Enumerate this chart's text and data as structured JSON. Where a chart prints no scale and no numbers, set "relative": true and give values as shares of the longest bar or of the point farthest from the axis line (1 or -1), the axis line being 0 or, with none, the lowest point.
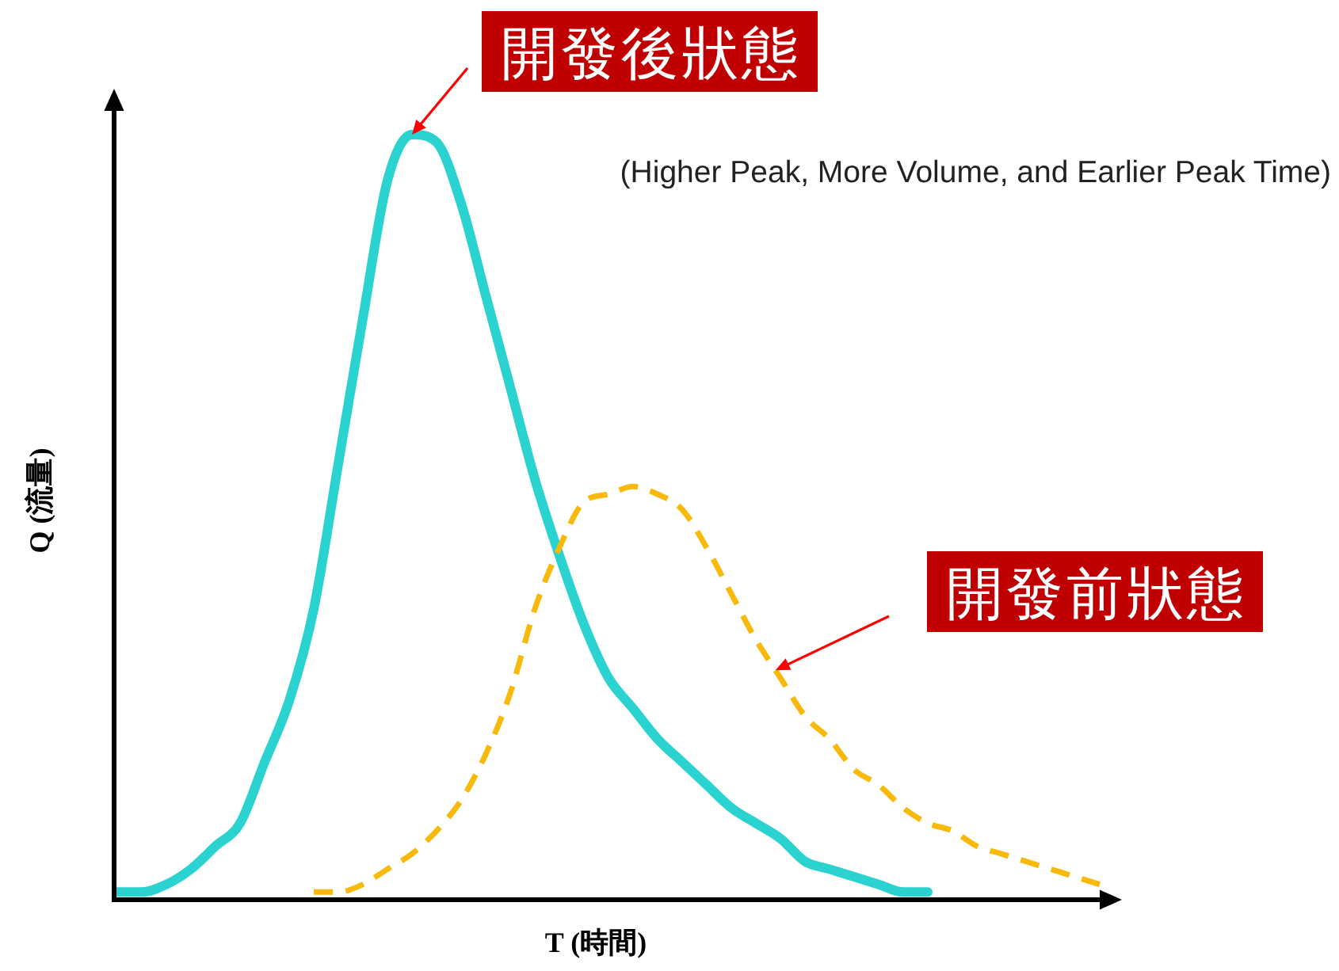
{
  "chart_data": {
    "type": "line",
    "relative": true,
    "line_style": "solid",
    "xlabel": "T (時間)",
    "ylabel": "Q (流量)",
    "categories": [
      null,
      null,
      null,
      null,
      null,
      null,
      null,
      null,
      null,
      null,
      null,
      null,
      null,
      null,
      null,
      null,
      null,
      null,
      null,
      null,
      null,
      null,
      null,
      null,
      null,
      null,
      null,
      null,
      null,
      null,
      null,
      null,
      null,
      null,
      null,
      null,
      null,
      null,
      null,
      null,
      null
    ],
    "series": [
      {
        "color": "#2ad2d0",
        "values": [
          0.01,
          0.01,
          0.02,
          0.04,
          0.07,
          0.1,
          0.18,
          0.26,
          0.38,
          0.57,
          0.76,
          0.94,
          1.0,
          0.99,
          0.91,
          0.79,
          0.67,
          0.55,
          0.45,
          0.36,
          0.29,
          0.25,
          0.21,
          0.18,
          0.15,
          0.12,
          0.1,
          0.08,
          0.05,
          0.04,
          0.03,
          0.02,
          0.01,
          0.01,
          null,
          null,
          null,
          null,
          null,
          null,
          null
        ]
      },
      {
        "color": "#f9b90b",
        "line_style": "dashed",
        "values": [
          null,
          null,
          null,
          null,
          null,
          null,
          null,
          null,
          0.01,
          0.01,
          0.02,
          0.04,
          0.06,
          0.09,
          0.13,
          0.19,
          0.27,
          0.38,
          0.46,
          0.52,
          0.53,
          0.54,
          0.53,
          0.51,
          0.46,
          0.4,
          0.34,
          0.29,
          0.24,
          0.21,
          0.17,
          0.15,
          0.12,
          0.1,
          0.09,
          0.07,
          0.06,
          0.05,
          0.04,
          0.03,
          0.02
        ]
      }
    ],
    "annotations": [
      "開發後狀態",
      "開發前狀態",
      "(Higher Peak, More Volume, and Earlier Peak Time)"
    ]
  }
}
